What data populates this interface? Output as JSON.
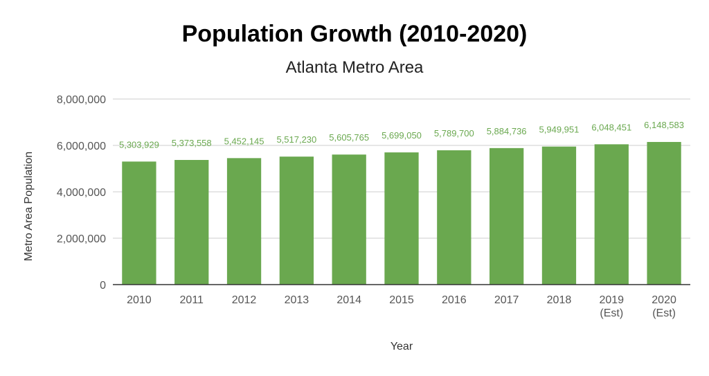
{
  "chart_data": {
    "type": "bar",
    "title": "Population Growth (2010-2020)",
    "subtitle": "Atlanta Metro Area",
    "xlabel": "Year",
    "ylabel": "Metro Area Population",
    "categories": [
      [
        "2010"
      ],
      [
        "2011"
      ],
      [
        "2012"
      ],
      [
        "2013"
      ],
      [
        "2014"
      ],
      [
        "2015"
      ],
      [
        "2016"
      ],
      [
        "2017"
      ],
      [
        "2018"
      ],
      [
        "2019",
        "(Est)"
      ],
      [
        "2020",
        "(Est)"
      ]
    ],
    "values": [
      5303929,
      5373558,
      5452145,
      5517230,
      5605765,
      5699050,
      5789700,
      5884736,
      5949951,
      6048451,
      6148583
    ],
    "data_labels": [
      "5,303,929",
      "5,373,558",
      "5,452,145",
      "5,517,230",
      "5,605,765",
      "5,699,050",
      "5,789,700",
      "5,884,736",
      "5,949,951",
      "6,048,451",
      "6,148,583"
    ],
    "ylim": [
      0,
      8000000
    ],
    "yticks": [
      0,
      2000000,
      4000000,
      6000000,
      8000000
    ],
    "ytick_labels": [
      "0",
      "2,000,000",
      "4,000,000",
      "6,000,000",
      "8,000,000"
    ],
    "grid": true,
    "legend": "none",
    "bar_color": "#6aa84f",
    "grid_color": "#cccccc",
    "axis_color": "#333333"
  }
}
